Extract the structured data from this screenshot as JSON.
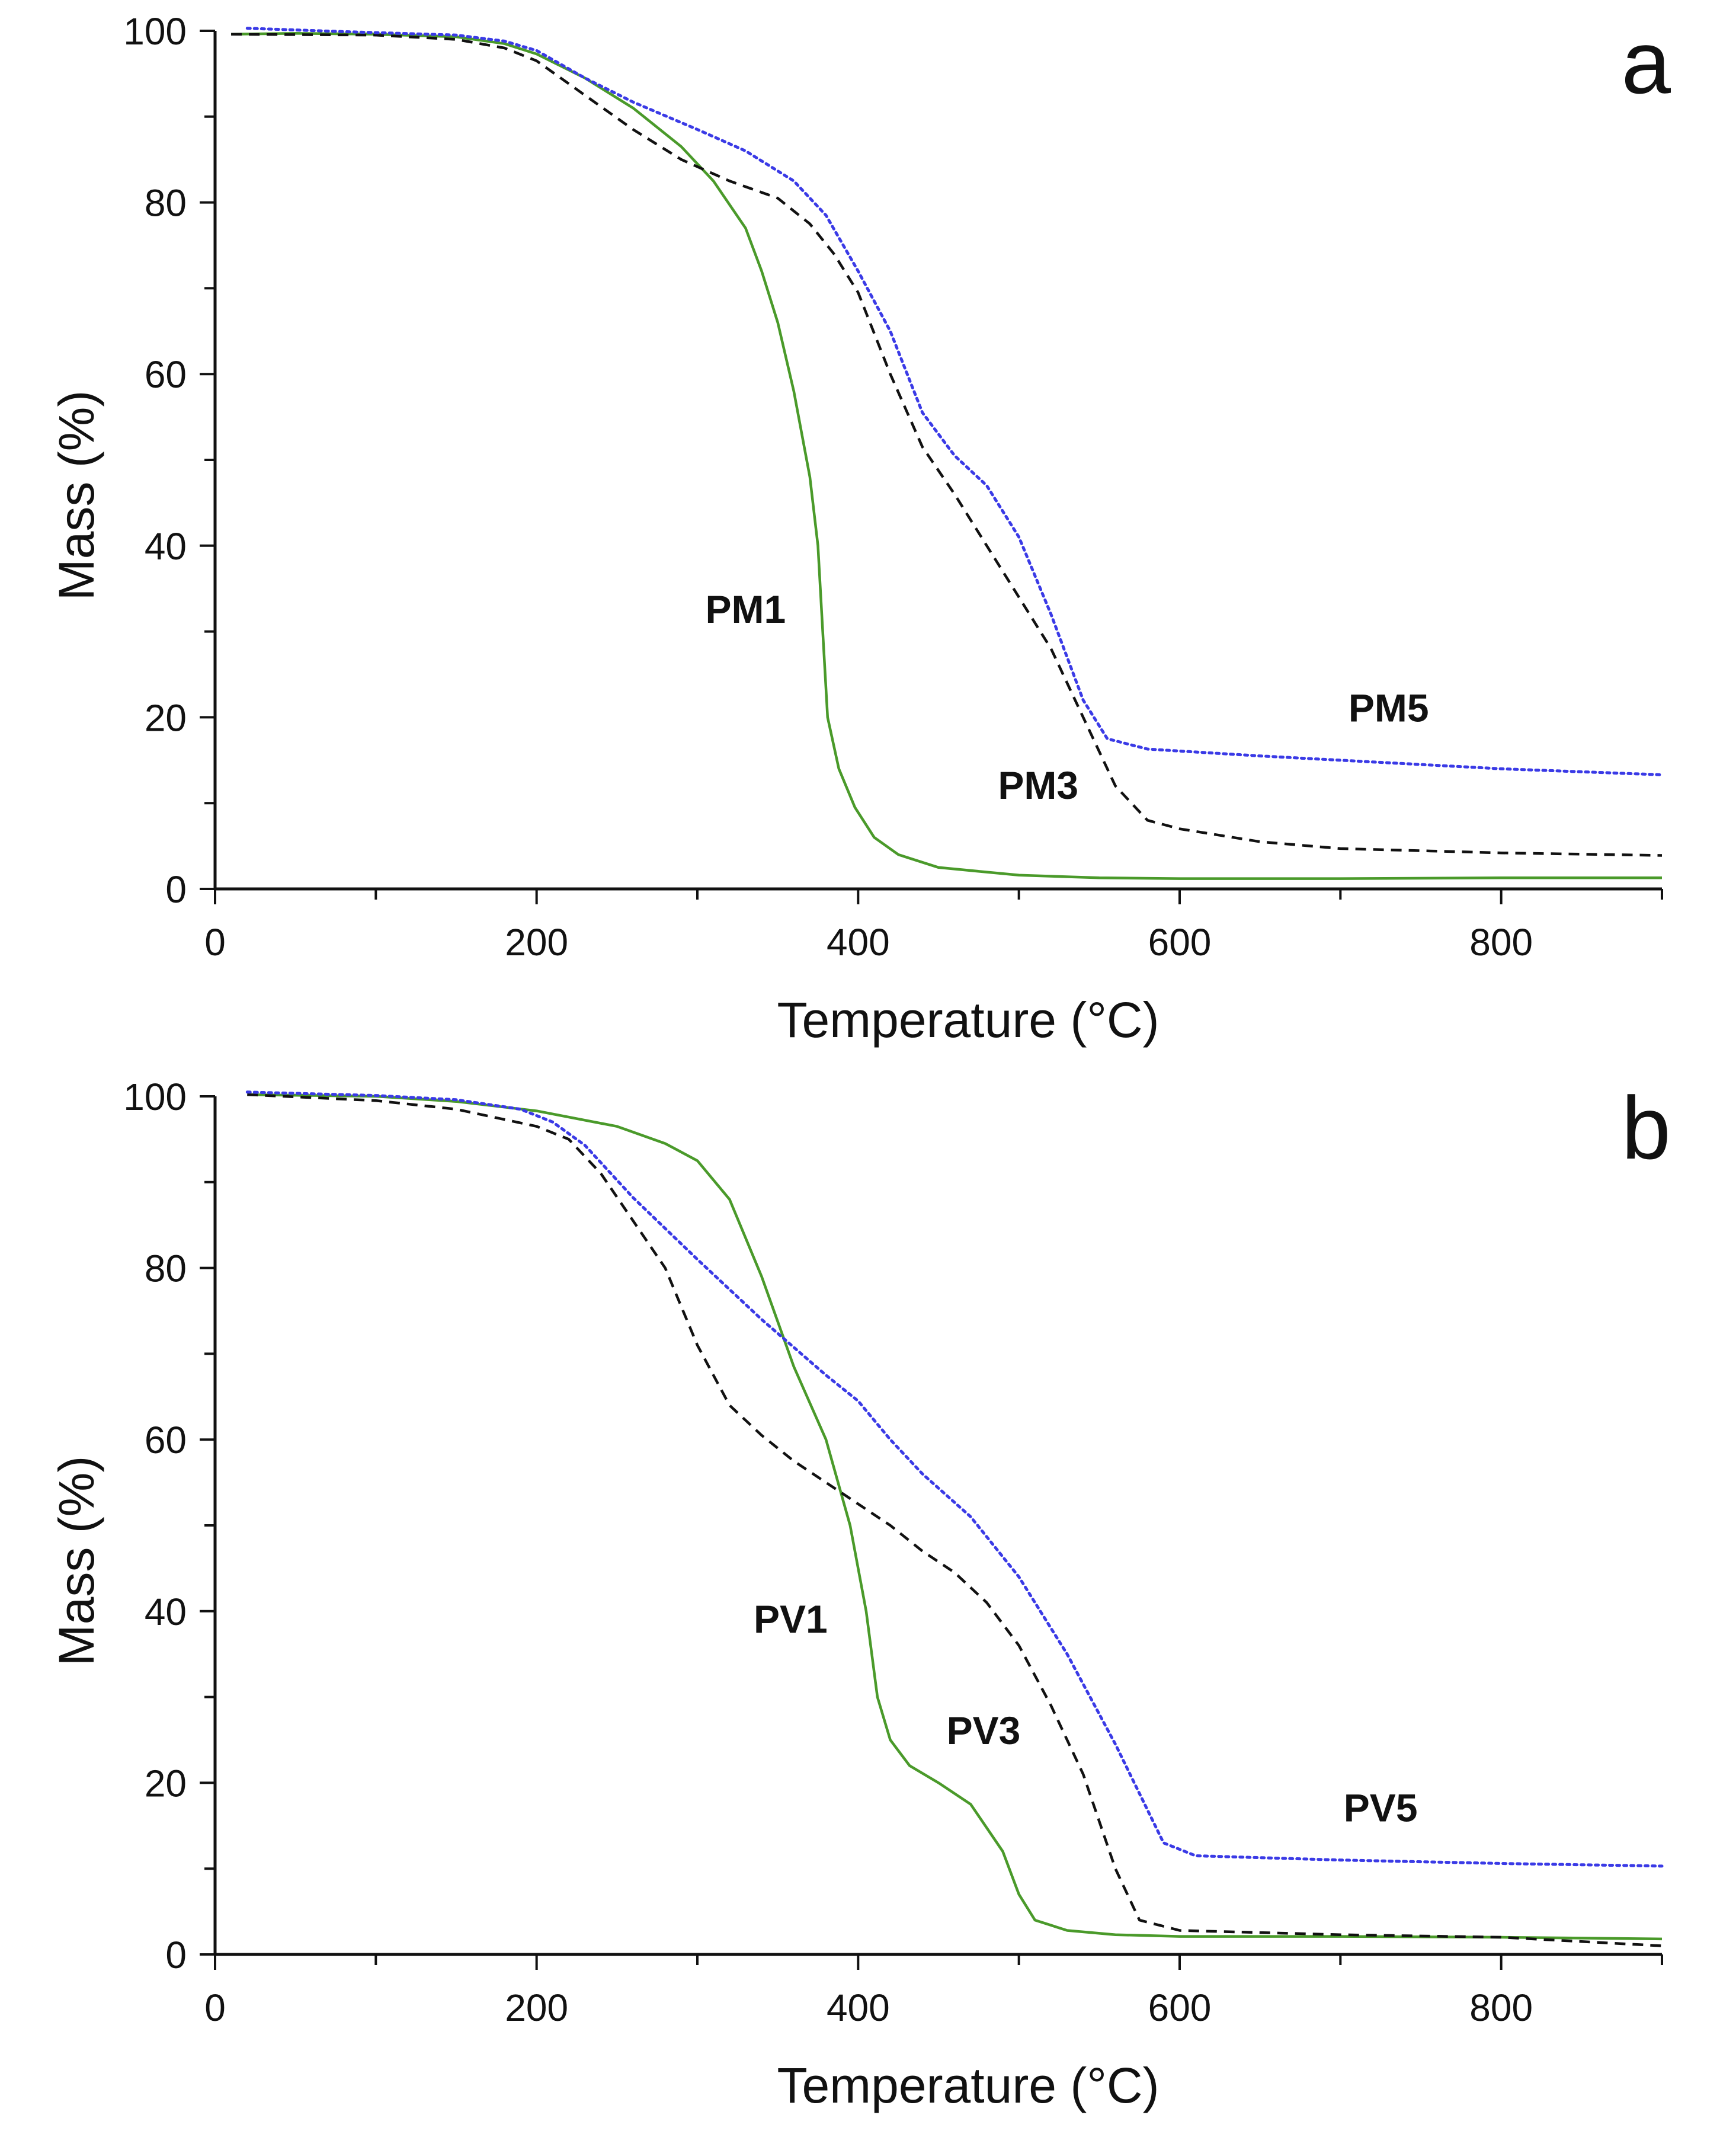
{
  "chart_data": [
    {
      "type": "line",
      "panel_label": "a",
      "xlabel": "Temperature (°C)",
      "ylabel": "Mass (%)",
      "xlim": [
        0,
        900
      ],
      "ylim": [
        0,
        100
      ],
      "x_ticks": [
        0,
        200,
        400,
        600,
        800
      ],
      "y_ticks": [
        0,
        20,
        40,
        60,
        80,
        100
      ],
      "series": [
        {
          "name": "PM1",
          "color": "#4a9a2a",
          "style": "solid",
          "points": [
            [
              10,
              99.6
            ],
            [
              50,
              99.7
            ],
            [
              100,
              99.6
            ],
            [
              150,
              99.3
            ],
            [
              180,
              98.5
            ],
            [
              200,
              97.3
            ],
            [
              230,
              94.5
            ],
            [
              260,
              91
            ],
            [
              290,
              86.5
            ],
            [
              310,
              82.5
            ],
            [
              330,
              77
            ],
            [
              340,
              72
            ],
            [
              350,
              66
            ],
            [
              360,
              58
            ],
            [
              370,
              48
            ],
            [
              375,
              40
            ],
            [
              378,
              30
            ],
            [
              381,
              20
            ],
            [
              388,
              14
            ],
            [
              398,
              9.5
            ],
            [
              410,
              6
            ],
            [
              425,
              4
            ],
            [
              450,
              2.5
            ],
            [
              500,
              1.6
            ],
            [
              550,
              1.3
            ],
            [
              600,
              1.2
            ],
            [
              700,
              1.2
            ],
            [
              800,
              1.3
            ],
            [
              900,
              1.3
            ]
          ]
        },
        {
          "name": "PM3",
          "color": "#111111",
          "style": "dashed",
          "points": [
            [
              10,
              99.6
            ],
            [
              100,
              99.5
            ],
            [
              150,
              99
            ],
            [
              180,
              98
            ],
            [
              200,
              96.5
            ],
            [
              230,
              92.5
            ],
            [
              260,
              88.5
            ],
            [
              290,
              85
            ],
            [
              320,
              82.5
            ],
            [
              350,
              80.5
            ],
            [
              370,
              77.5
            ],
            [
              385,
              74
            ],
            [
              400,
              69.5
            ],
            [
              420,
              60
            ],
            [
              440,
              51.5
            ],
            [
              460,
              46
            ],
            [
              480,
              40
            ],
            [
              500,
              34
            ],
            [
              520,
              28
            ],
            [
              540,
              20
            ],
            [
              560,
              12
            ],
            [
              580,
              8
            ],
            [
              600,
              7
            ],
            [
              650,
              5.5
            ],
            [
              700,
              4.7
            ],
            [
              800,
              4.2
            ],
            [
              900,
              3.9
            ]
          ]
        },
        {
          "name": "PM5",
          "color": "#3a3ae6",
          "style": "dotted",
          "points": [
            [
              20,
              100.3
            ],
            [
              80,
              99.9
            ],
            [
              150,
              99.5
            ],
            [
              180,
              98.8
            ],
            [
              200,
              97.7
            ],
            [
              230,
              94.5
            ],
            [
              260,
              91.7
            ],
            [
              300,
              88.5
            ],
            [
              330,
              86
            ],
            [
              360,
              82.5
            ],
            [
              380,
              78.5
            ],
            [
              400,
              72
            ],
            [
              420,
              65
            ],
            [
              440,
              55.5
            ],
            [
              460,
              50.5
            ],
            [
              480,
              47
            ],
            [
              500,
              41
            ],
            [
              520,
              32
            ],
            [
              540,
              22
            ],
            [
              555,
              17.5
            ],
            [
              580,
              16.3
            ],
            [
              650,
              15.5
            ],
            [
              800,
              14
            ],
            [
              900,
              13.3
            ]
          ]
        }
      ],
      "annotations": [
        {
          "text": "PM1",
          "x": 330,
          "y": 31
        },
        {
          "text": "PM3",
          "x": 512,
          "y": 10.5
        },
        {
          "text": "PM5",
          "x": 730,
          "y": 19.5
        }
      ]
    },
    {
      "type": "line",
      "panel_label": "b",
      "xlabel": "Temperature (°C)",
      "ylabel": "Mass (%)",
      "xlim": [
        0,
        900
      ],
      "ylim": [
        0,
        100
      ],
      "x_ticks": [
        0,
        200,
        400,
        600,
        800
      ],
      "y_ticks": [
        0,
        20,
        40,
        60,
        80,
        100
      ],
      "series": [
        {
          "name": "PV1",
          "color": "#4a9a2a",
          "style": "solid",
          "points": [
            [
              20,
              100.2
            ],
            [
              100,
              100
            ],
            [
              150,
              99.4
            ],
            [
              200,
              98.3
            ],
            [
              250,
              96.5
            ],
            [
              280,
              94.5
            ],
            [
              300,
              92.5
            ],
            [
              320,
              88
            ],
            [
              340,
              79
            ],
            [
              360,
              68.5
            ],
            [
              380,
              60
            ],
            [
              395,
              50
            ],
            [
              405,
              40
            ],
            [
              412,
              30
            ],
            [
              420,
              25
            ],
            [
              432,
              22
            ],
            [
              450,
              20
            ],
            [
              470,
              17.5
            ],
            [
              490,
              12
            ],
            [
              500,
              7
            ],
            [
              510,
              4
            ],
            [
              530,
              2.8
            ],
            [
              560,
              2.3
            ],
            [
              600,
              2.1
            ],
            [
              700,
              2.1
            ],
            [
              800,
              2
            ],
            [
              900,
              1.8
            ]
          ]
        },
        {
          "name": "PV3",
          "color": "#111111",
          "style": "dashed",
          "points": [
            [
              20,
              100.2
            ],
            [
              100,
              99.5
            ],
            [
              150,
              98.5
            ],
            [
              200,
              96.5
            ],
            [
              220,
              95
            ],
            [
              240,
              91
            ],
            [
              260,
              85.5
            ],
            [
              280,
              80
            ],
            [
              300,
              71
            ],
            [
              320,
              64
            ],
            [
              340,
              60.5
            ],
            [
              360,
              57.5
            ],
            [
              380,
              55
            ],
            [
              400,
              52.5
            ],
            [
              420,
              50
            ],
            [
              440,
              47
            ],
            [
              460,
              44.5
            ],
            [
              480,
              41
            ],
            [
              500,
              36
            ],
            [
              520,
              29
            ],
            [
              540,
              21
            ],
            [
              560,
              10
            ],
            [
              575,
              4
            ],
            [
              600,
              2.8
            ],
            [
              700,
              2.3
            ],
            [
              800,
              2
            ],
            [
              900,
              1
            ]
          ]
        },
        {
          "name": "PV5",
          "color": "#3a3ae6",
          "style": "dotted",
          "points": [
            [
              20,
              100.5
            ],
            [
              100,
              100.1
            ],
            [
              150,
              99.6
            ],
            [
              190,
              98.5
            ],
            [
              210,
              97
            ],
            [
              230,
              94.3
            ],
            [
              260,
              88.2
            ],
            [
              300,
              81
            ],
            [
              340,
              74
            ],
            [
              380,
              67.5
            ],
            [
              400,
              64.5
            ],
            [
              420,
              60
            ],
            [
              440,
              56
            ],
            [
              470,
              51
            ],
            [
              500,
              44
            ],
            [
              530,
              35
            ],
            [
              560,
              24.5
            ],
            [
              590,
              13
            ],
            [
              610,
              11.5
            ],
            [
              700,
              11
            ],
            [
              800,
              10.6
            ],
            [
              900,
              10.3
            ]
          ]
        }
      ],
      "annotations": [
        {
          "text": "PV1",
          "x": 358,
          "y": 37.5
        },
        {
          "text": "PV3",
          "x": 478,
          "y": 24.5
        },
        {
          "text": "PV5",
          "x": 725,
          "y": 15.5
        }
      ]
    }
  ]
}
